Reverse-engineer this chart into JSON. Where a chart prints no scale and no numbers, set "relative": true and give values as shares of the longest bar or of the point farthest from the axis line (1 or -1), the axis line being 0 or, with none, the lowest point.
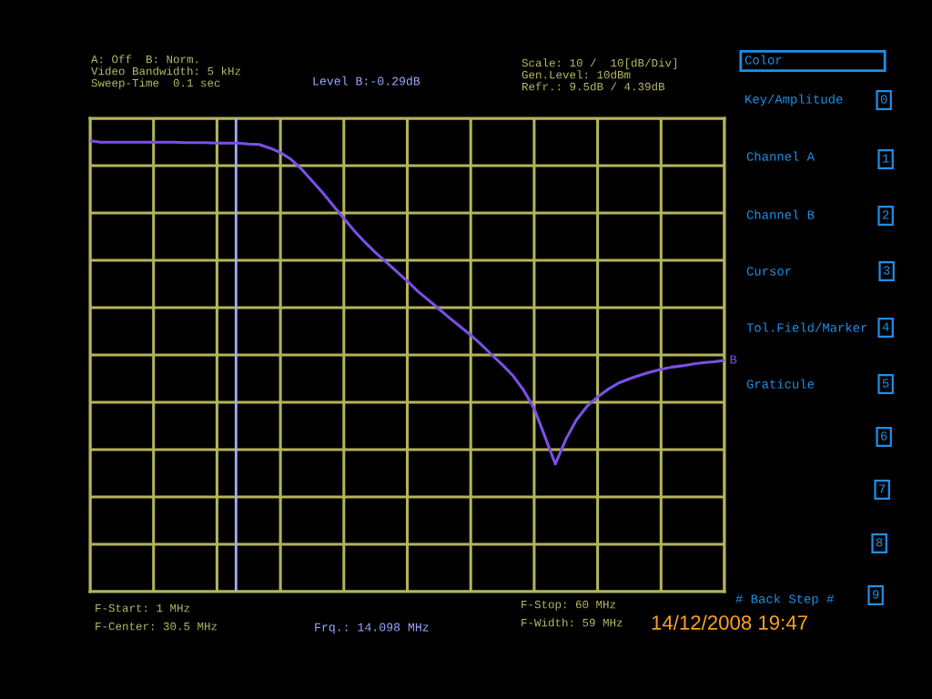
{
  "chart_data": {
    "type": "line",
    "relative": true,
    "categories": [
      null,
      null,
      null,
      null,
      null,
      null,
      null,
      null,
      null,
      null,
      null,
      null,
      null,
      null,
      null,
      null,
      null,
      null,
      null,
      null,
      null,
      null,
      null,
      null,
      null,
      null,
      null,
      null,
      null,
      null,
      null,
      null,
      null,
      null,
      null,
      null,
      null,
      null,
      null,
      null,
      null,
      null,
      null,
      null,
      null,
      null,
      null,
      null,
      null,
      null,
      null,
      null,
      null,
      null,
      null,
      null,
      null,
      null,
      null,
      null,
      null
    ],
    "series": [
      {
        "name": "B",
        "color": "#7a50e6",
        "values": [
          1.0,
          0.997,
          0.997,
          0.997,
          0.997,
          0.997,
          0.997,
          0.997,
          0.997,
          0.996,
          0.996,
          0.996,
          0.995,
          0.995,
          0.995,
          0.993,
          0.992,
          0.984,
          0.974,
          0.959,
          0.937,
          0.911,
          0.885,
          0.856,
          0.828,
          0.8,
          0.775,
          0.752,
          0.731,
          0.71,
          0.689,
          0.666,
          0.647,
          0.627,
          0.607,
          0.588,
          0.569,
          0.548,
          0.525,
          0.503,
          0.479,
          0.447,
          0.406,
          0.345,
          0.283,
          0.338,
          0.381,
          0.411,
          0.432,
          0.449,
          0.463,
          0.472,
          0.48,
          0.487,
          0.493,
          0.498,
          0.501,
          0.505,
          0.508,
          0.51,
          0.513
        ]
      }
    ],
    "grid": true,
    "annotations": [
      "A: Off  B: Norm.",
      "Video Bandwidth: 5 kHz",
      "Sweep-Time  0.1 sec",
      "Level B:-0.29dB",
      "Scale: 10 /  10[dB/Div]",
      "Gen.Level: 10dBm",
      "Refr.: 9.5dB / 4.39dB",
      "Color",
      "Key/Amplitude",
      "0",
      "Channel A",
      "1",
      "Channel B",
      "2",
      "Cursor",
      "3",
      "Tol.Field/Marker",
      "4",
      "Graticule",
      "5",
      "6",
      "7",
      "8",
      "# Back Step #",
      "9",
      "F-Start: 1 MHz",
      "F-Center: 30.5 MHz",
      "Frq.: 14.098 MHz",
      "F-Stop: 60 MHz",
      "F-Width: 59 MHz",
      "14/12/2008 19:47"
    ]
  }
}
